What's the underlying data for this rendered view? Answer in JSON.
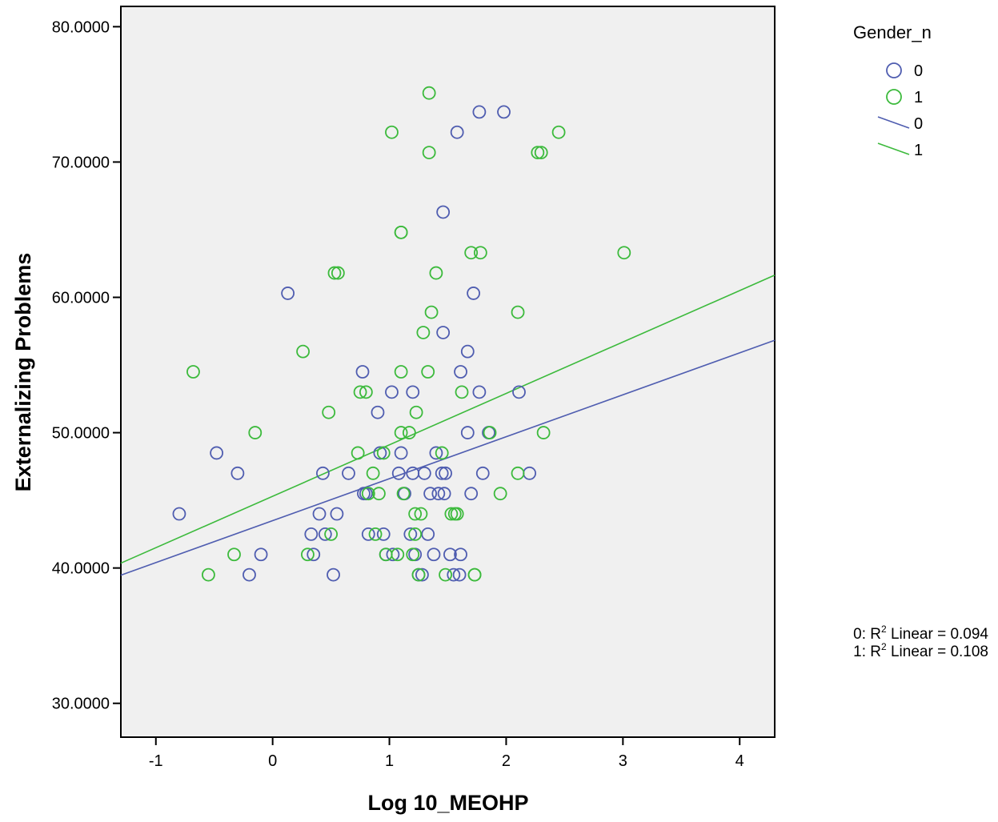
{
  "chart_data": {
    "type": "scatter",
    "title": "",
    "xlabel": "Log 10_MEOHP",
    "ylabel": "Externalizing Problems",
    "xlim": [
      -1.3,
      4.3
    ],
    "ylim": [
      27.5,
      81.5
    ],
    "x_ticks": [
      -1,
      0,
      1,
      2,
      3,
      4
    ],
    "y_ticks": [
      30,
      40,
      50,
      60,
      70,
      80
    ],
    "x_tick_labels": [
      "-1",
      "0",
      "1",
      "2",
      "3",
      "4"
    ],
    "y_tick_labels": [
      "30.0000",
      "40.0000",
      "50.0000",
      "60.0000",
      "70.0000",
      "80.0000"
    ],
    "grid": false,
    "plot_background": "#f0f0f0",
    "legend": {
      "title": "Gender_n",
      "placement": "right-top",
      "entries": [
        {
          "kind": "marker",
          "label": "0",
          "color": "#4f5db0"
        },
        {
          "kind": "marker",
          "label": "1",
          "color": "#3cba3c"
        },
        {
          "kind": "line",
          "label": "0",
          "color": "#4f5db0"
        },
        {
          "kind": "line",
          "label": "1",
          "color": "#3cba3c"
        }
      ]
    },
    "annotations": [
      {
        "prefix": "0: R",
        "sup": "2",
        "suffix": " Linear = 0.094"
      },
      {
        "prefix": "1: R",
        "sup": "2",
        "suffix": " Linear = 0.108"
      }
    ],
    "series": [
      {
        "name": "0",
        "color": "#4f5db0",
        "fit": {
          "intercept": 43.5,
          "slope": 3.1
        },
        "points": [
          [
            -0.8,
            44
          ],
          [
            -0.48,
            48.5
          ],
          [
            -0.3,
            47
          ],
          [
            -0.2,
            39.5
          ],
          [
            -0.1,
            41
          ],
          [
            0.13,
            60.3
          ],
          [
            0.33,
            42.5
          ],
          [
            0.35,
            41
          ],
          [
            0.4,
            44
          ],
          [
            0.43,
            47
          ],
          [
            0.45,
            42.5
          ],
          [
            0.52,
            39.5
          ],
          [
            0.55,
            44
          ],
          [
            0.65,
            47
          ],
          [
            0.77,
            54.5
          ],
          [
            0.78,
            45.5
          ],
          [
            0.8,
            45.5
          ],
          [
            0.82,
            42.5
          ],
          [
            0.9,
            51.5
          ],
          [
            0.92,
            48.5
          ],
          [
            0.95,
            42.5
          ],
          [
            0.97,
            41
          ],
          [
            1.02,
            53
          ],
          [
            1.03,
            41
          ],
          [
            1.08,
            47
          ],
          [
            1.1,
            48.5
          ],
          [
            1.13,
            45.5
          ],
          [
            1.18,
            42.5
          ],
          [
            1.2,
            47
          ],
          [
            1.2,
            53
          ],
          [
            1.22,
            41
          ],
          [
            1.25,
            39.5
          ],
          [
            1.28,
            39.5
          ],
          [
            1.3,
            47
          ],
          [
            1.33,
            42.5
          ],
          [
            1.35,
            45.5
          ],
          [
            1.38,
            41
          ],
          [
            1.4,
            48.5
          ],
          [
            1.42,
            45.5
          ],
          [
            1.45,
            47
          ],
          [
            1.46,
            57.4
          ],
          [
            1.46,
            66.3
          ],
          [
            1.47,
            45.5
          ],
          [
            1.48,
            47
          ],
          [
            1.52,
            41
          ],
          [
            1.55,
            39.5
          ],
          [
            1.58,
            72.2
          ],
          [
            1.6,
            39.5
          ],
          [
            1.61,
            54.5
          ],
          [
            1.61,
            41
          ],
          [
            1.67,
            56
          ],
          [
            1.67,
            50
          ],
          [
            1.7,
            45.5
          ],
          [
            1.72,
            60.3
          ],
          [
            1.77,
            73.7
          ],
          [
            1.77,
            53
          ],
          [
            1.8,
            47
          ],
          [
            1.85,
            50
          ],
          [
            1.98,
            73.7
          ],
          [
            2.11,
            53
          ],
          [
            2.2,
            47
          ]
        ]
      },
      {
        "name": "1",
        "color": "#3cba3c",
        "fit": {
          "intercept": 45.3,
          "slope": 3.8
        },
        "points": [
          [
            -0.68,
            54.5
          ],
          [
            -0.55,
            39.5
          ],
          [
            -0.33,
            41
          ],
          [
            -0.15,
            50
          ],
          [
            0.26,
            56
          ],
          [
            0.3,
            41
          ],
          [
            0.48,
            51.5
          ],
          [
            0.5,
            42.5
          ],
          [
            0.53,
            61.8
          ],
          [
            0.56,
            61.8
          ],
          [
            0.73,
            48.5
          ],
          [
            0.75,
            53
          ],
          [
            0.8,
            53
          ],
          [
            0.82,
            45.5
          ],
          [
            0.86,
            47
          ],
          [
            0.88,
            42.5
          ],
          [
            0.91,
            45.5
          ],
          [
            0.95,
            48.5
          ],
          [
            0.97,
            41
          ],
          [
            1.02,
            72.2
          ],
          [
            1.07,
            41
          ],
          [
            1.1,
            50
          ],
          [
            1.1,
            54.5
          ],
          [
            1.1,
            64.8
          ],
          [
            1.1,
            64.8
          ],
          [
            1.12,
            45.5
          ],
          [
            1.17,
            50
          ],
          [
            1.2,
            41
          ],
          [
            1.22,
            44
          ],
          [
            1.22,
            42.5
          ],
          [
            1.23,
            51.5
          ],
          [
            1.25,
            39.5
          ],
          [
            1.27,
            44
          ],
          [
            1.29,
            57.4
          ],
          [
            1.33,
            54.5
          ],
          [
            1.34,
            75.1
          ],
          [
            1.34,
            70.7
          ],
          [
            1.36,
            58.9
          ],
          [
            1.4,
            61.8
          ],
          [
            1.45,
            48.5
          ],
          [
            1.48,
            39.5
          ],
          [
            1.53,
            44
          ],
          [
            1.56,
            44
          ],
          [
            1.58,
            44
          ],
          [
            1.62,
            53
          ],
          [
            1.7,
            63.3
          ],
          [
            1.73,
            39.5
          ],
          [
            1.73,
            39.5
          ],
          [
            1.78,
            63.3
          ],
          [
            1.86,
            50
          ],
          [
            1.95,
            45.5
          ],
          [
            2.1,
            58.9
          ],
          [
            2.1,
            47
          ],
          [
            2.27,
            70.7
          ],
          [
            2.3,
            70.7
          ],
          [
            2.32,
            50
          ],
          [
            2.45,
            72.2
          ],
          [
            3.01,
            63.3
          ]
        ]
      }
    ]
  }
}
